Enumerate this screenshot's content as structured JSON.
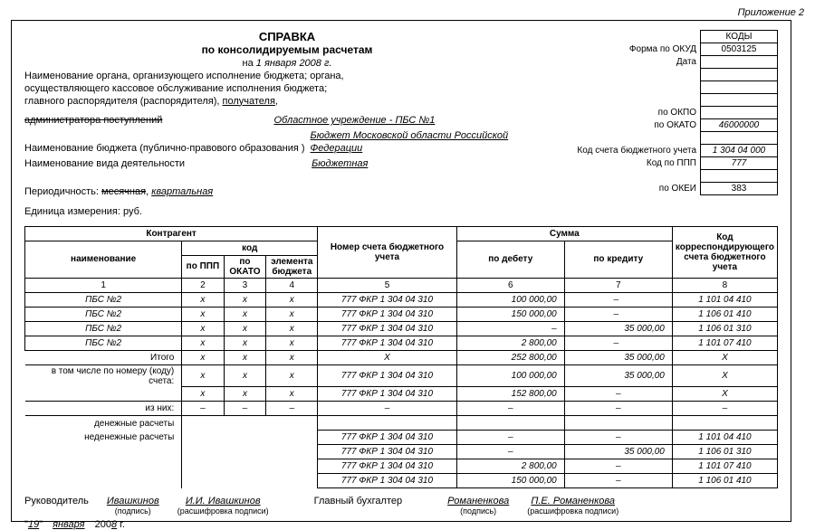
{
  "annex": "Приложение 2",
  "title": {
    "main": "СПРАВКА",
    "sub": "по консолидируемым расчетам",
    "date_prefix": "на",
    "date": "1 января 2008 г."
  },
  "codes": {
    "header": "КОДЫ",
    "okud_lbl": "Форма по ОКУД",
    "okud": "0503125",
    "date_lbl": "Дата",
    "okpo_lbl": "по ОКПО",
    "okato_lbl": "по ОКАТО",
    "okato": "46000000",
    "acct_lbl": "Код счета бюджетного учета",
    "acct": "1 304 04 000",
    "ppp_lbl": "Код по ППП",
    "ppp": "777",
    "okei_lbl": "по ОКЕИ",
    "okei": "383"
  },
  "org": {
    "l1": "Наименование органа, организующего исполнение бюджета; органа,",
    "l2": "осуществляющего кассовое обслуживание исполнения бюджета;",
    "l3": "главного распорядителя (распорядителя), ",
    "l3u": "получателя",
    "l3p": ",",
    "l4": "администратора поступлений",
    "inst": "Областное учреждение - ПБС №1",
    "budget_lbl": "Наименование бюджета (публично-правового образования )",
    "budget": "Бюджет Московской области Российской Федерации",
    "activity_lbl": "Наименование вида деятельности",
    "activity": "Бюджетная",
    "period_lbl": "Периодичность: ",
    "period_s": "месячная",
    "period_sep": ", ",
    "period_u": "квартальная",
    "unit_lbl": "Единица измерения:  руб."
  },
  "th": {
    "counterparty": "Контрагент",
    "name": "наименование",
    "code": "код",
    "ppp": "по ППП",
    "okato": "по ОКАТО",
    "elem": "элемента бюджета",
    "acct_no": "Номер счета бюджетного учета",
    "sum": "Сумма",
    "debit": "по дебету",
    "credit": "по кредиту",
    "corr": "Код корреспондирующего счета бюджетного учета",
    "c1": "1",
    "c2": "2",
    "c3": "3",
    "c4": "4",
    "c5": "5",
    "c6": "6",
    "c7": "7",
    "c8": "8"
  },
  "rows": [
    {
      "n": "ПБС №2",
      "p": "х",
      "o": "х",
      "e": "х",
      "a": "777 ФКР 1 304 04 310",
      "d": "100 000,00",
      "c": "–",
      "k": "1 101 04 410"
    },
    {
      "n": "ПБС №2",
      "p": "х",
      "o": "х",
      "e": "х",
      "a": "777 ФКР 1 304 04 310",
      "d": "150 000,00",
      "c": "–",
      "k": "1 106 01 410"
    },
    {
      "n": "ПБС №2",
      "p": "х",
      "o": "х",
      "e": "х",
      "a": "777 ФКР 1 304 04 310",
      "d": "–",
      "c": "35 000,00",
      "k": "1 106 01 310"
    },
    {
      "n": "ПБС №2",
      "p": "х",
      "o": "х",
      "e": "х",
      "a": "777 ФКР 1 304 04 310",
      "d": "2 800,00",
      "c": "–",
      "k": "1 101 07 410"
    }
  ],
  "totals": {
    "itogo": "Итого",
    "sub_lbl": "в том числе по номеру (коду) счета:",
    "of_which": "из них:",
    "cash": "денежные расчеты",
    "noncash": "неденежные расчеты",
    "r_itogo": {
      "p": "х",
      "o": "х",
      "e": "х",
      "a": "Х",
      "d": "252 800,00",
      "c": "35 000,00",
      "k": "Х"
    },
    "r_sub1": {
      "p": "х",
      "o": "х",
      "e": "х",
      "a": "777 ФКР 1 304 04 310",
      "d": "100 000,00",
      "c": "35 000,00",
      "k": "Х"
    },
    "r_sub2": {
      "p": "х",
      "o": "х",
      "e": "х",
      "a": "777 ФКР 1 304 04 310",
      "d": "152 800,00",
      "c": "–",
      "k": "Х"
    },
    "r_of": {
      "p": "–",
      "o": "–",
      "e": "–",
      "a": "–",
      "d": "–",
      "c": "–",
      "k": "–"
    },
    "r_nc1": {
      "a": "777 ФКР 1 304 04 310",
      "d": "–",
      "c": "–",
      "k": "1 101 04 410"
    },
    "r_nc2": {
      "a": "777 ФКР 1 304 04 310",
      "d": "–",
      "c": "35 000,00",
      "k": "1 106 01 310"
    },
    "r_nc3": {
      "a": "777 ФКР 1 304 04 310",
      "d": "2 800,00",
      "c": "–",
      "k": "1 101 07 410"
    },
    "r_nc4": {
      "a": "777 ФКР 1 304 04 310",
      "d": "150 000,00",
      "c": "–",
      "k": "1 106 01 410"
    }
  },
  "sig": {
    "head_lbl": "Руководитель",
    "head_sig": "Ивашкинов",
    "head_name": "И.И. Ивашкинов",
    "acc_lbl": "Главный бухгалтер",
    "acc_sig": "Романенкова",
    "acc_name": "П.Е. Романенкова",
    "cap_sig": "(подпись)",
    "cap_name": "(расшифровка подписи)"
  },
  "fdate": {
    "q": "\"",
    "d": "19",
    "m": "января",
    "y_pre": "200",
    "y": "8",
    "g": "г."
  }
}
